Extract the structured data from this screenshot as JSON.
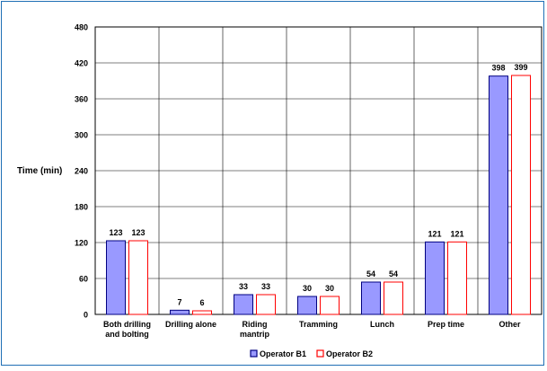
{
  "chart_data": {
    "type": "bar",
    "categories": [
      [
        "Both drilling",
        "and bolting"
      ],
      [
        "Drilling alone"
      ],
      [
        "Riding",
        "mantrip"
      ],
      [
        "Tramming"
      ],
      [
        "Lunch"
      ],
      [
        "Prep time"
      ],
      [
        "Other"
      ]
    ],
    "series": [
      {
        "name": "Operator B1",
        "values": [
          123,
          7,
          33,
          30,
          54,
          121,
          398
        ],
        "fill": "#9999ff",
        "stroke": "#000080"
      },
      {
        "name": "Operator B2",
        "values": [
          123,
          6,
          33,
          30,
          54,
          121,
          399
        ],
        "fill": "#ffffff",
        "stroke": "#ff0000"
      }
    ],
    "ylabel": "Time (min)",
    "ylim": [
      0,
      480
    ],
    "yticks": [
      0,
      60,
      120,
      180,
      240,
      300,
      360,
      420,
      480
    ],
    "grid": true,
    "legend": "bottom-center"
  }
}
